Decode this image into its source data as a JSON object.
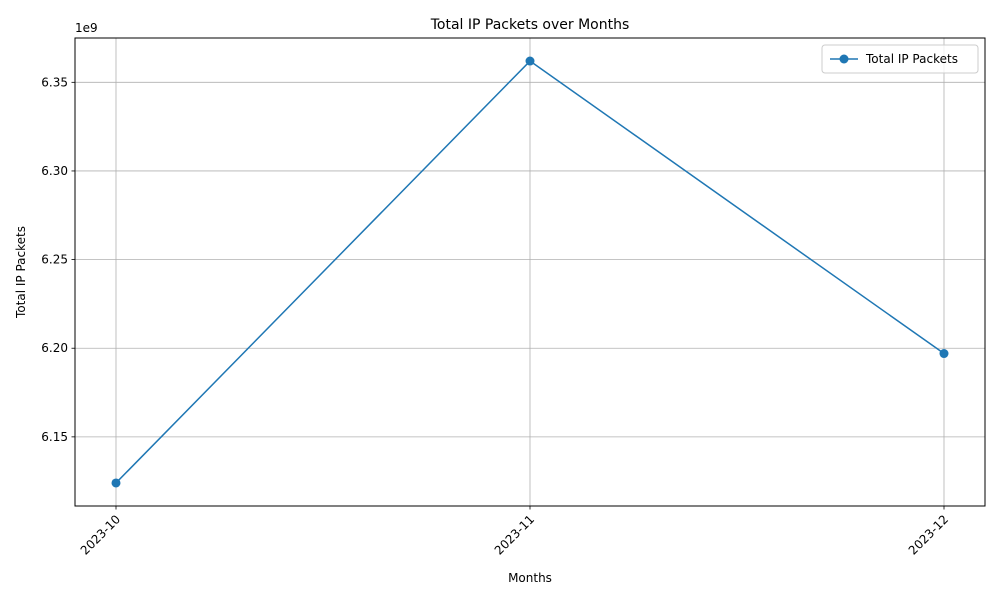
{
  "chart_data": {
    "type": "line",
    "title": "Total IP Packets over Months",
    "xlabel": "Months",
    "ylabel": "Total IP Packets",
    "y_offset_label": "1e9",
    "categories": [
      "2023-10",
      "2023-11",
      "2023-12"
    ],
    "series": [
      {
        "name": "Total IP Packets",
        "values": [
          6124000000,
          6362000000,
          6197000000
        ],
        "color": "#1f77b4",
        "marker": "circle"
      }
    ],
    "ylim": [
      6111000000,
      6375000000
    ],
    "yticks": [
      6150000000,
      6200000000,
      6250000000,
      6300000000,
      6350000000
    ],
    "ytick_labels": [
      "6.15",
      "6.20",
      "6.25",
      "6.30",
      "6.35"
    ],
    "grid": true,
    "legend_position": "top-right"
  }
}
